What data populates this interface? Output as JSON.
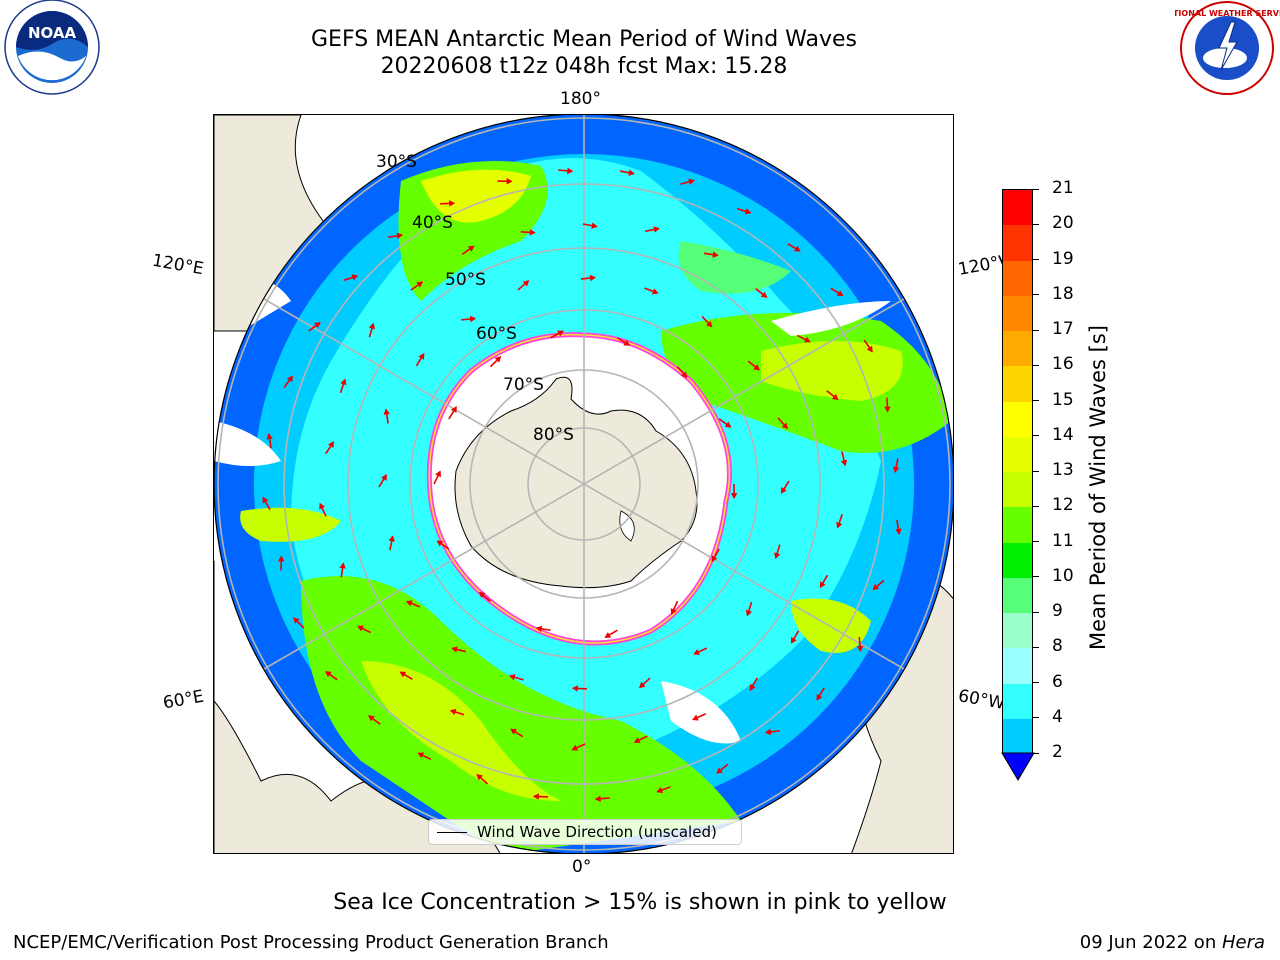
{
  "title_line1": "GEFS MEAN Antarctic Mean Period of Wind Waves",
  "title_line2": "20220608 t12z 048h fcst   Max: 15.28",
  "lon_labels": {
    "top": "180°",
    "bottom": "0°",
    "left_upper": "120°E",
    "right_upper": "120°W",
    "left_lower": "60°E",
    "right_lower": "60°W"
  },
  "lat_labels": [
    "30°S",
    "40°S",
    "50°S",
    "60°S",
    "70°S",
    "80°S"
  ],
  "colorbar": {
    "label": "Mean Period of Wind Waves [s]",
    "ticks": [
      "21",
      "20",
      "19",
      "18",
      "17",
      "16",
      "15",
      "14",
      "13",
      "12",
      "11",
      "10",
      "9",
      "8",
      "6",
      "4",
      "2"
    ],
    "colors": [
      "#ff0000",
      "#ff3300",
      "#ff6600",
      "#ff8800",
      "#ffaa00",
      "#ffd500",
      "#ffff00",
      "#e6ff00",
      "#c8ff00",
      "#66ff00",
      "#00ee00",
      "#55ff77",
      "#99ffcc",
      "#99ffff",
      "#33ffff",
      "#00ccff",
      "#0066ff",
      "#0000ff"
    ]
  },
  "legend_label": "Wind Wave Direction (unscaled)",
  "subtitle": "Sea Ice Concentration > 15% is shown in pink to yellow",
  "footer_left": "NCEP/EMC/Verification Post Processing Product Generation Branch",
  "footer_right_date": "09 Jun 2022 on ",
  "footer_right_host": "Hera",
  "logos": {
    "noaa": "NOAA",
    "nws": "NATIONAL WEATHER SERVICE"
  },
  "colors": {
    "land": "#eeeadb",
    "ice": "#ffffff",
    "arrow": "#ee0000",
    "grid": "#b5b5b5"
  }
}
